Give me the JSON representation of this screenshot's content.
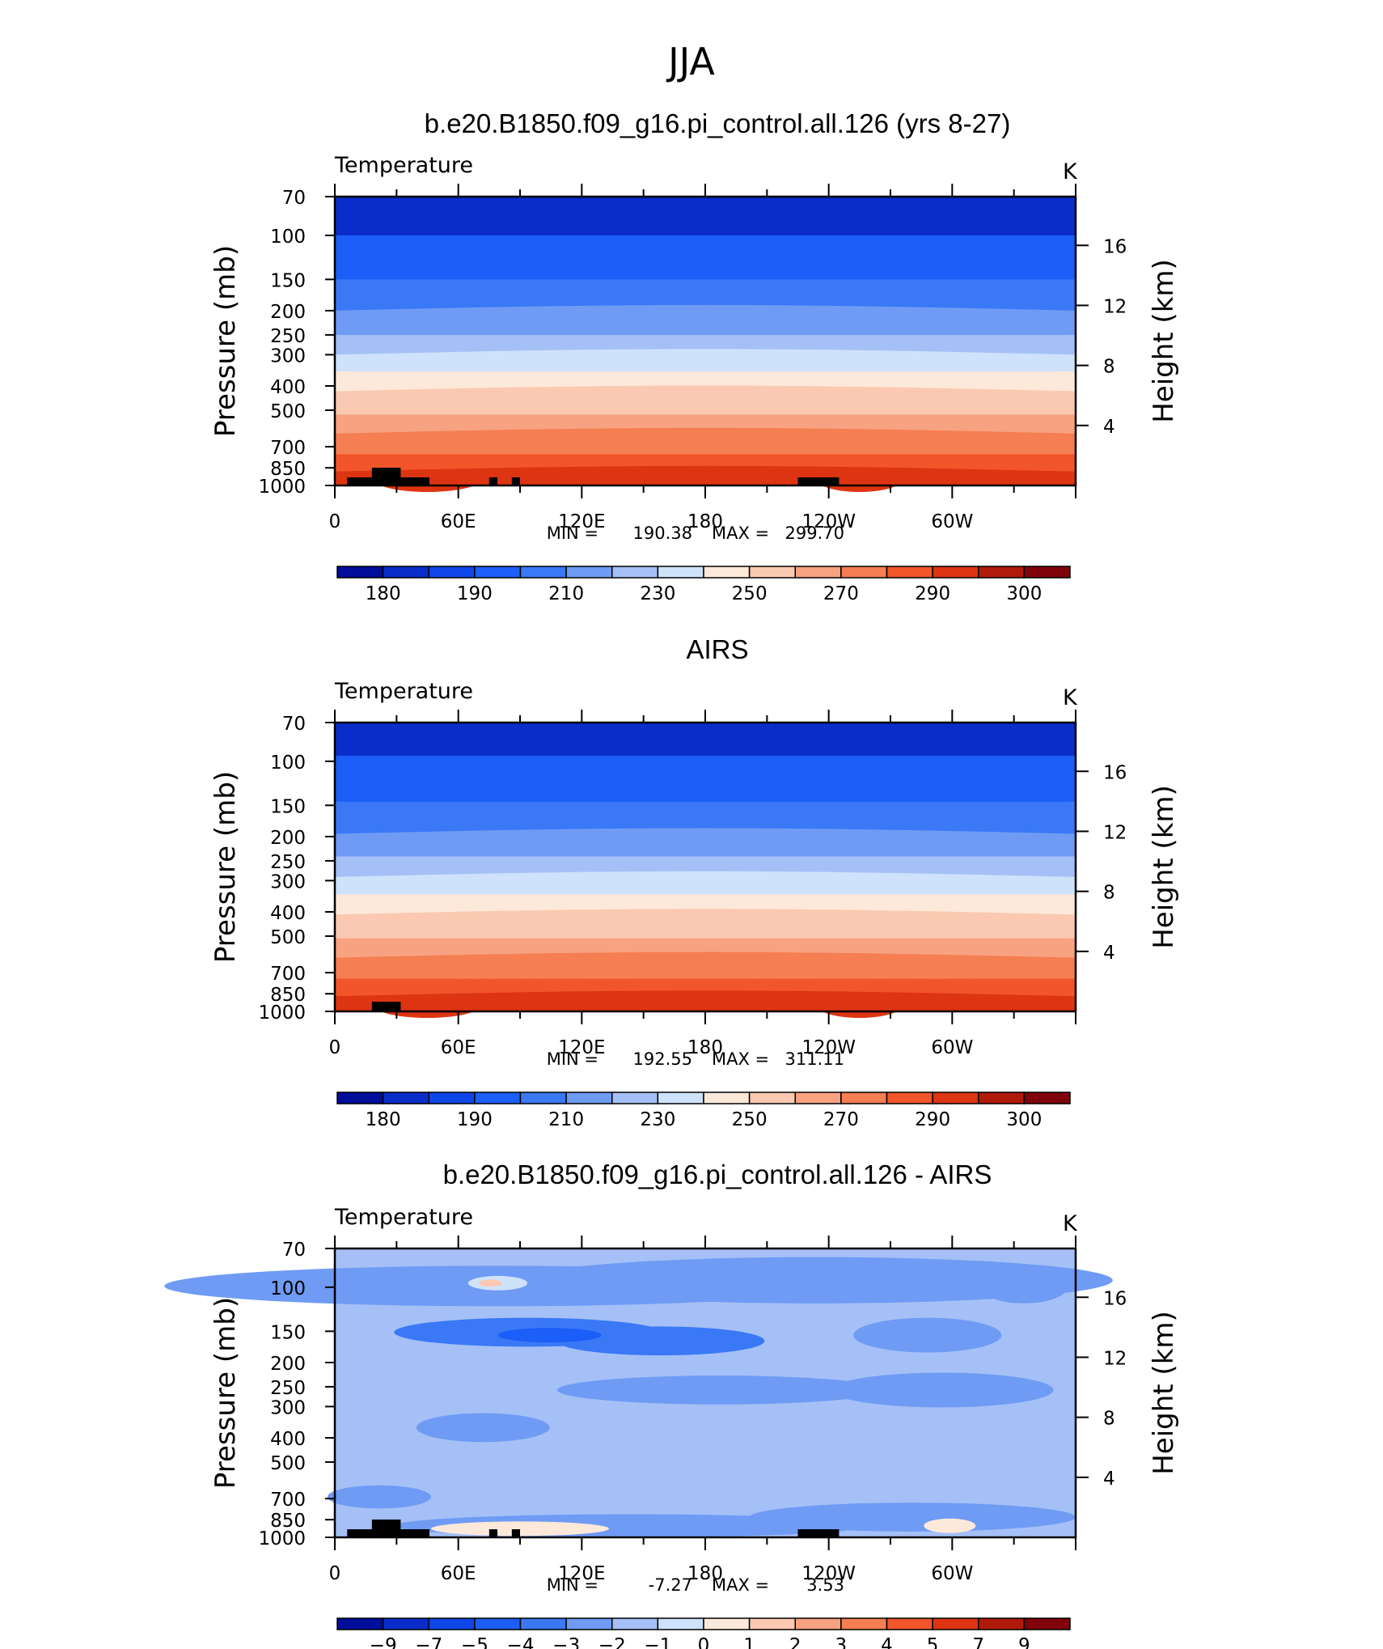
{
  "figure": {
    "title": "JJA"
  },
  "palette": [
    "#000e9a",
    "#0a2cc9",
    "#0f46e8",
    "#1b5ef8",
    "#3a78f6",
    "#6f9bf4",
    "#a4c0f6",
    "#cfe2fb",
    "#fde9da",
    "#fbc9b1",
    "#f7a281",
    "#f57e52",
    "#f2552a",
    "#dd3412",
    "#b01a0b",
    "#80020a"
  ],
  "chart_data": [
    {
      "type": "heatmap",
      "title": "b.e20.B1850.f09_g16.pi_control.all.126 (yrs 8-27)",
      "variable": "Temperature",
      "units": "K",
      "ylabel": "Pressure (mb)",
      "ylabel2": "Height (km)",
      "x_ticks": [
        "0",
        "60E",
        "120E",
        "180",
        "120W",
        "60W"
      ],
      "y_ticks": [
        "70",
        "100",
        "150",
        "200",
        "250",
        "300",
        "400",
        "500",
        "700",
        "850",
        "1000"
      ],
      "y2_ticks": [
        "16",
        "12",
        "8",
        "4"
      ],
      "xlim": [
        0,
        360
      ],
      "ylim_mb": [
        1000,
        70
      ],
      "stats": {
        "min_label": "MIN =",
        "min": "190.38",
        "max_label": "MAX =",
        "max": "299.70"
      },
      "colorbar_labels": [
        "180",
        "190",
        "210",
        "230",
        "250",
        "270",
        "290",
        "300"
      ],
      "levels": [
        [
          100,
          1
        ],
        [
          150,
          3
        ],
        [
          200,
          4
        ],
        [
          250,
          5
        ],
        [
          300,
          6
        ],
        [
          350,
          7
        ],
        [
          420,
          8
        ],
        [
          520,
          9
        ],
        [
          620,
          10
        ],
        [
          750,
          11
        ],
        [
          880,
          12
        ],
        [
          1000,
          13
        ]
      ]
    },
    {
      "type": "heatmap",
      "title": "AIRS",
      "variable": "Temperature",
      "units": "K",
      "ylabel": "Pressure (mb)",
      "ylabel2": "Height (km)",
      "x_ticks": [
        "0",
        "60E",
        "120E",
        "180",
        "120W",
        "60W"
      ],
      "y_ticks": [
        "70",
        "100",
        "150",
        "200",
        "250",
        "300",
        "400",
        "500",
        "700",
        "850",
        "1000"
      ],
      "y2_ticks": [
        "16",
        "12",
        "8",
        "4"
      ],
      "xlim": [
        0,
        360
      ],
      "ylim_mb": [
        1000,
        70
      ],
      "stats": {
        "min_label": "MIN =",
        "min": "192.55",
        "max_label": "MAX =",
        "max": "311.11"
      },
      "colorbar_labels": [
        "180",
        "190",
        "210",
        "230",
        "250",
        "270",
        "290",
        "300"
      ],
      "levels": [
        [
          95,
          1
        ],
        [
          145,
          3
        ],
        [
          195,
          4
        ],
        [
          240,
          5
        ],
        [
          290,
          6
        ],
        [
          340,
          7
        ],
        [
          410,
          8
        ],
        [
          510,
          9
        ],
        [
          610,
          10
        ],
        [
          740,
          11
        ],
        [
          870,
          12
        ],
        [
          1000,
          13
        ]
      ]
    },
    {
      "type": "heatmap",
      "title": "b.e20.B1850.f09_g16.pi_control.all.126 - AIRS",
      "variable": "Temperature",
      "units": "K",
      "ylabel": "Pressure (mb)",
      "ylabel2": "Height (km)",
      "x_ticks": [
        "0",
        "60E",
        "120E",
        "180",
        "120W",
        "60W"
      ],
      "y_ticks": [
        "70",
        "100",
        "150",
        "200",
        "250",
        "300",
        "400",
        "500",
        "700",
        "850",
        "1000"
      ],
      "y2_ticks": [
        "16",
        "12",
        "8",
        "4"
      ],
      "xlim": [
        0,
        360
      ],
      "ylim_mb": [
        1000,
        70
      ],
      "stats": {
        "min_label": "MIN =",
        "min": "-7.27",
        "max_label": "MAX =",
        "max": "3.53"
      },
      "colorbar_labels": [
        "−9",
        "−7",
        "−5",
        "−4",
        "−3",
        "−2",
        "−1",
        "0",
        "1",
        "2",
        "3",
        "4",
        "5",
        "7",
        "9"
      ],
      "dominant_range": "-2 to -1"
    }
  ]
}
